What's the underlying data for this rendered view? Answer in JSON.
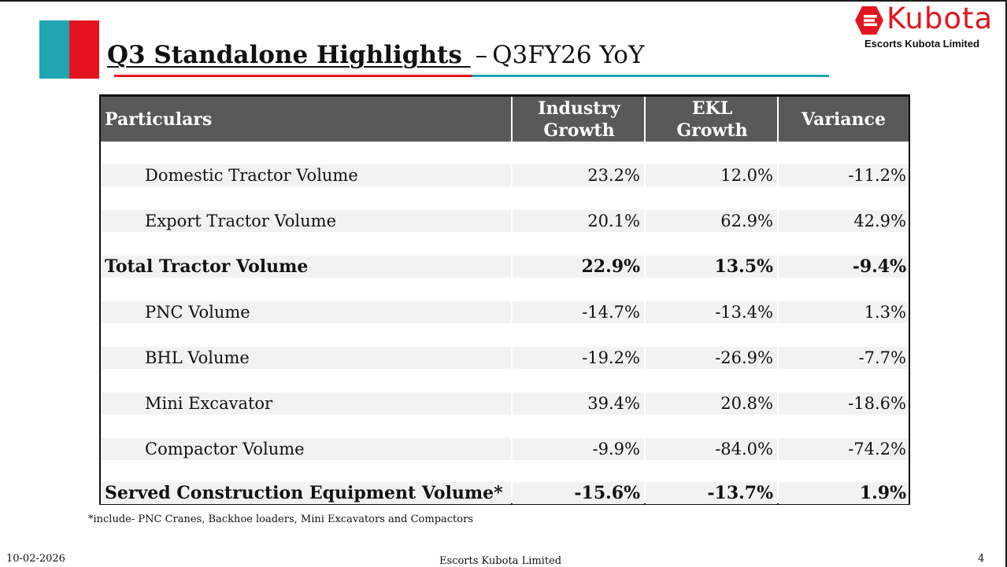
{
  "title": {
    "main": "Q3 Standalone Highlights ",
    "separator": "–",
    "sub": "Q3FY26 YoY"
  },
  "logo": {
    "wordmark": "Kubota",
    "subtitle": "Escorts Kubota Limited"
  },
  "colors": {
    "teal": "#1fa5b1",
    "red": "#e3141f",
    "header_bg": "#595959",
    "row_bg": "#f2f2f2"
  },
  "table": {
    "headers": [
      "Particulars",
      "Industry\nGrowth",
      "EKL\nGrowth",
      "Variance"
    ],
    "rows": [
      {
        "label": "Domestic Tractor Volume",
        "industry": "23.2%",
        "ekl": "12.0%",
        "variance": "-11.2%"
      },
      {
        "label": "Export Tractor Volume",
        "industry": "20.1%",
        "ekl": "62.9%",
        "variance": "42.9%"
      },
      {
        "label": "Total Tractor Volume",
        "industry": "22.9%",
        "ekl": "13.5%",
        "variance": "-9.4%"
      },
      {
        "label": "PNC Volume",
        "industry": "-14.7%",
        "ekl": "-13.4%",
        "variance": "1.3%"
      },
      {
        "label": "BHL Volume",
        "industry": "-19.2%",
        "ekl": "-26.9%",
        "variance": "-7.7%"
      },
      {
        "label": "Mini Excavator",
        "industry": "39.4%",
        "ekl": "20.8%",
        "variance": "-18.6%"
      },
      {
        "label": "Compactor Volume",
        "industry": "-9.9%",
        "ekl": "-84.0%",
        "variance": "-74.2%"
      },
      {
        "label": "Served Construction Equipment Volume*",
        "industry": "-15.6%",
        "ekl": "-13.7%",
        "variance": "1.9%"
      }
    ]
  },
  "footnote": "*include- PNC Cranes, Backhoe loaders, Mini Excavators and Compactors",
  "footer": {
    "date": "10-02-2026",
    "company": "Escorts Kubota Limited",
    "page": "4"
  }
}
